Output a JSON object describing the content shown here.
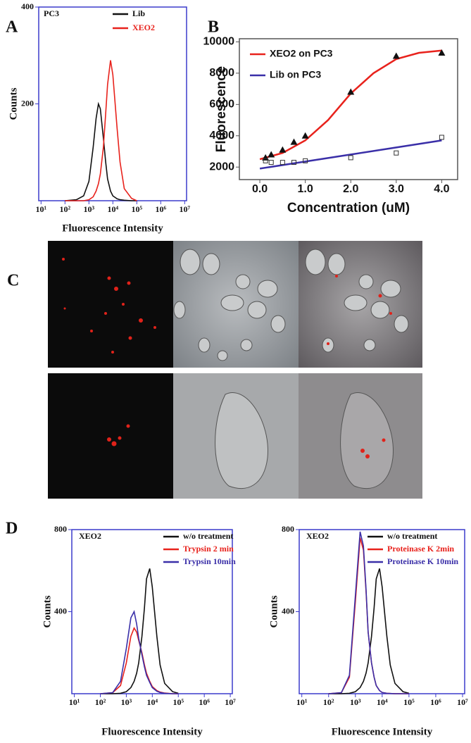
{
  "panel_labels": [
    "A",
    "B",
    "C",
    "D"
  ],
  "chart_data": [
    {
      "type": "line",
      "xscale": "log",
      "annotation": "PC3",
      "x_label": "Fluorescence Intensity",
      "y_label": "Counts",
      "xlim": [
        8,
        12000000
      ],
      "ylim": [
        0,
        400
      ],
      "xticks": [
        {
          "value": 10,
          "label": "10¹"
        },
        {
          "value": 100,
          "label": "10²"
        },
        {
          "value": 1000,
          "label": "10³"
        },
        {
          "value": 10000,
          "label": "10⁴"
        },
        {
          "value": 100000,
          "label": "10⁵"
        },
        {
          "value": 1000000,
          "label": "10⁶"
        },
        {
          "value": 10000000,
          "label": "10⁷"
        }
      ],
      "yticks": [
        200,
        400
      ],
      "x": [
        100,
        300,
        600,
        1000,
        1500,
        2000,
        2500,
        3000,
        4000,
        5000,
        6000,
        8000,
        10000,
        15000,
        20000,
        30000,
        60000,
        100000
      ],
      "series": [
        {
          "name": "Lib",
          "color": "#111111",
          "values": [
            0,
            2,
            10,
            40,
            110,
            170,
            200,
            190,
            130,
            80,
            45,
            20,
            10,
            4,
            2,
            1,
            0,
            0
          ]
        },
        {
          "name": "XEO2",
          "color": "#e8221c",
          "values": [
            0,
            0,
            0,
            2,
            8,
            20,
            35,
            55,
            110,
            180,
            240,
            290,
            260,
            150,
            80,
            25,
            5,
            0
          ]
        }
      ]
    },
    {
      "type": "scatter",
      "x_label": "Concentration (uM)",
      "y_label": "Fluorescence",
      "xlim": [
        -0.45,
        4.35
      ],
      "ylim": [
        1200,
        10200
      ],
      "xticks": [
        {
          "value": 0,
          "label": "0.0"
        },
        {
          "value": 1,
          "label": "1.0"
        },
        {
          "value": 2,
          "label": "2.0"
        },
        {
          "value": 3,
          "label": "3.0"
        },
        {
          "value": 4,
          "label": "4.0"
        }
      ],
      "yticks": [
        2000,
        4000,
        6000,
        8000,
        10000
      ],
      "series": [
        {
          "name": "XEO2 on PC3",
          "color": "#e8221c",
          "marker": "triangle",
          "x": [
            0.125,
            0.25,
            0.5,
            0.75,
            1.0,
            2.0,
            3.0,
            4.0
          ],
          "values": [
            2600,
            2800,
            3100,
            3600,
            4000,
            6800,
            9100,
            9300
          ],
          "fit_x": [
            0,
            0.5,
            1,
            1.5,
            2,
            2.5,
            3,
            3.5,
            4
          ],
          "fit_values": [
            2500,
            2900,
            3700,
            5000,
            6700,
            8000,
            8900,
            9300,
            9450
          ]
        },
        {
          "name": "Lib on PC3",
          "color": "#3a2fa8",
          "marker": "square",
          "x": [
            0.125,
            0.25,
            0.5,
            0.75,
            1.0,
            2.0,
            3.0,
            4.0
          ],
          "values": [
            2400,
            2300,
            2300,
            2300,
            2400,
            2600,
            2900,
            3900
          ],
          "fit_x": [
            0,
            1,
            2,
            3,
            4
          ],
          "fit_values": [
            1900,
            2350,
            2800,
            3250,
            3700
          ]
        }
      ]
    },
    {
      "type": "line",
      "xscale": "log",
      "annotation": "XEO2",
      "x_label": "Fluorescence Intensity",
      "y_label": "Counts",
      "xlim": [
        8,
        12000000
      ],
      "ylim": [
        0,
        800
      ],
      "xticks": [
        {
          "value": 10,
          "label": "10¹"
        },
        {
          "value": 100,
          "label": "10²"
        },
        {
          "value": 1000,
          "label": "10³"
        },
        {
          "value": 10000,
          "label": "10⁴"
        },
        {
          "value": 100000,
          "label": "10⁵"
        },
        {
          "value": 1000000,
          "label": "10⁶"
        },
        {
          "value": 10000000,
          "label": "10⁷"
        }
      ],
      "yticks": [
        400,
        800
      ],
      "x": [
        100,
        300,
        600,
        1000,
        1500,
        2000,
        2500,
        3000,
        4000,
        5000,
        6000,
        8000,
        10000,
        15000,
        20000,
        30000,
        60000,
        100000
      ],
      "series": [
        {
          "name": "w/o treatment",
          "color": "#111111",
          "values": [
            0,
            0,
            2,
            10,
            30,
            60,
            100,
            150,
            280,
            420,
            560,
            610,
            520,
            280,
            140,
            50,
            10,
            2
          ]
        },
        {
          "name": "Trypsin 2 min",
          "color": "#e8221c",
          "values": [
            0,
            5,
            40,
            150,
            280,
            320,
            300,
            260,
            200,
            140,
            100,
            60,
            35,
            15,
            8,
            3,
            0,
            0
          ]
        },
        {
          "name": "Trypsin 10min",
          "color": "#3a2fa8",
          "values": [
            0,
            5,
            60,
            220,
            370,
            400,
            340,
            270,
            190,
            130,
            90,
            55,
            30,
            12,
            6,
            2,
            0,
            0
          ]
        }
      ]
    },
    {
      "type": "line",
      "xscale": "log",
      "annotation": "XEO2",
      "x_label": "Fluorescence Intensity",
      "y_label": "Counts",
      "xlim": [
        8,
        12000000
      ],
      "ylim": [
        0,
        800
      ],
      "xticks": [
        {
          "value": 10,
          "label": "10¹"
        },
        {
          "value": 100,
          "label": "10²"
        },
        {
          "value": 1000,
          "label": "10³"
        },
        {
          "value": 10000,
          "label": "10⁴"
        },
        {
          "value": 100000,
          "label": "10⁵"
        },
        {
          "value": 1000000,
          "label": "10⁶"
        },
        {
          "value": 10000000,
          "label": "10⁷"
        }
      ],
      "yticks": [
        400,
        800
      ],
      "x": [
        100,
        300,
        600,
        1000,
        1500,
        2000,
        2500,
        3000,
        4000,
        5000,
        6000,
        8000,
        10000,
        15000,
        20000,
        30000,
        60000,
        100000
      ],
      "series": [
        {
          "name": "w/o treatment",
          "color": "#111111",
          "values": [
            0,
            0,
            2,
            10,
            30,
            60,
            100,
            150,
            280,
            420,
            560,
            610,
            520,
            280,
            140,
            50,
            10,
            2
          ]
        },
        {
          "name": "Proteinase K 2min",
          "color": "#e8221c",
          "values": [
            0,
            5,
            80,
            450,
            760,
            700,
            500,
            300,
            150,
            80,
            40,
            15,
            6,
            2,
            1,
            0,
            0,
            0
          ]
        },
        {
          "name": "Proteinase K 10min",
          "color": "#3a2fa8",
          "values": [
            0,
            5,
            90,
            480,
            790,
            720,
            510,
            300,
            150,
            80,
            40,
            15,
            6,
            2,
            1,
            0,
            0,
            0
          ]
        }
      ]
    }
  ]
}
